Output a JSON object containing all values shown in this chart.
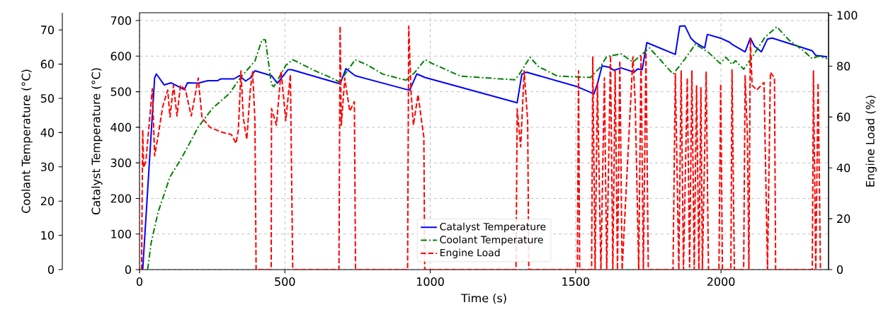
{
  "chart_data": {
    "type": "line",
    "xlabel": "Time (s)",
    "ylabel": "Catalyst Temperature (°C)",
    "y2label": "Engine Load (%)",
    "y3label": "Coolant Temperature (°C)",
    "xlim": [
      0,
      2370
    ],
    "xticks": [
      0,
      500,
      1000,
      1500,
      2000
    ],
    "ylim": [
      0,
      722
    ],
    "yticks": [
      0,
      100,
      200,
      300,
      400,
      500,
      600,
      700
    ],
    "y2lim": [
      0,
      101
    ],
    "y2ticks": [
      0,
      20,
      40,
      60,
      80,
      100
    ],
    "y3lim": [
      0,
      75
    ],
    "y3ticks": [
      0,
      10,
      20,
      30,
      40,
      50,
      60,
      70
    ],
    "grid": true,
    "legend": "bottom",
    "series": [
      {
        "name": "Catalyst Temperature",
        "color": "#0000ff",
        "axis": "y",
        "line_style": "solid",
        "x": [
          11,
          52,
          58,
          85,
          109,
          154,
          165,
          202,
          235,
          268,
          279,
          325,
          344,
          365,
          381,
          397,
          454,
          474,
          511,
          523,
          690,
          710,
          742,
          929,
          954,
          982,
          1299,
          1315,
          1331,
          1506,
          1563,
          1575,
          1591,
          1615,
          1632,
          1656,
          1701,
          1713,
          1729,
          1745,
          1843,
          1858,
          1876,
          1896,
          1912,
          1944,
          1953,
          1997,
          2030,
          2038,
          2083,
          2101,
          2115,
          2139,
          2160,
          2176,
          2314,
          2326,
          2365
        ],
        "values": [
          0,
          539,
          550,
          519,
          525,
          506,
          525,
          524,
          531,
          531,
          536,
          536,
          545,
          530,
          539,
          559,
          545,
          524,
          562,
          562,
          522,
          565,
          545,
          504,
          550,
          540,
          469,
          549,
          555,
          514,
          494,
          522,
          573,
          569,
          560,
          567,
          555,
          564,
          562,
          638,
          605,
          684,
          685,
          651,
          638,
          623,
          661,
          651,
          639,
          633,
          612,
          651,
          628,
          612,
          648,
          651,
          615,
          602,
          598
        ]
      },
      {
        "name": "Coolant Temperature",
        "color": "#008000",
        "axis": "y3",
        "line_style": "dashdot",
        "x": [
          28,
          40,
          64,
          105,
          145,
          202,
          251,
          308,
          348,
          397,
          421,
          433,
          454,
          462,
          503,
          527,
          551,
          600,
          657,
          690,
          710,
          742,
          787,
          836,
          917,
          946,
          982,
          1006,
          1104,
          1291,
          1307,
          1343,
          1372,
          1437,
          1551,
          1583,
          1607,
          1656,
          1697,
          1754,
          1795,
          1835,
          1859,
          1883,
          1912,
          1957,
          1997,
          2017,
          2038,
          2050,
          2078,
          2107,
          2151,
          2192,
          2233,
          2282,
          2314,
          2334,
          2365
        ],
        "values": [
          0,
          7.8,
          16.8,
          27.1,
          32.6,
          41.6,
          47.1,
          51.3,
          56.1,
          60.9,
          67.1,
          67.1,
          54.0,
          53.4,
          59.6,
          61.3,
          60.3,
          58.2,
          56.1,
          54.7,
          57.5,
          61.3,
          59.6,
          57.1,
          55.3,
          57.5,
          61.3,
          60.2,
          56.5,
          55.4,
          57.1,
          62.0,
          59.3,
          56.5,
          56.1,
          58.9,
          62.2,
          63.0,
          60.6,
          64.7,
          60.9,
          57.1,
          59.6,
          62.3,
          65.8,
          63.4,
          60.2,
          62.0,
          59.9,
          61.0,
          58.5,
          62.0,
          67.8,
          70.9,
          67.1,
          64.0,
          61.6,
          62.3,
          61.6
        ]
      },
      {
        "name": "Engine Load",
        "color": "#ff0000",
        "axis": "y2",
        "line_style": "dashed",
        "x": [
          7,
          11,
          14,
          22,
          44,
          52,
          64,
          80,
          97,
          105,
          117,
          129,
          141,
          158,
          178,
          202,
          215,
          243,
          284,
          316,
          332,
          340,
          349,
          357,
          369,
          381,
          389,
          397,
          401,
          453,
          454,
          471,
          487,
          503,
          519,
          527,
          686,
          690,
          694,
          706,
          723,
          739,
          743,
          922,
          926,
          934,
          942,
          958,
          970,
          978,
          981,
          1295,
          1299,
          1311,
          1323,
          1335,
          1339,
          1506,
          1510,
          1514,
          1555,
          1559,
          1567,
          1575,
          1587,
          1599,
          1607,
          1620,
          1628,
          1636,
          1644,
          1652,
          1660,
          1697,
          1705,
          1717,
          1725,
          1733,
          1742,
          1750,
          1835,
          1843,
          1855,
          1863,
          1871,
          1884,
          1892,
          1900,
          1908,
          1916,
          1924,
          1931,
          1936,
          1949,
          1957,
          1993,
          1999,
          2005,
          2034,
          2038,
          2046,
          2078,
          2083,
          2091,
          2096,
          2101,
          2107,
          2123,
          2148,
          2160,
          2170,
          2184,
          2188,
          2314,
          2318,
          2326,
          2334,
          2338,
          2342
        ],
        "values": [
          0,
          54.9,
          40.1,
          42.6,
          71.1,
          44.7,
          52.6,
          64.2,
          70.6,
          60.0,
          72.5,
          60.4,
          72.5,
          70.6,
          60.4,
          75.3,
          59.6,
          55.9,
          54.0,
          53.1,
          49.6,
          54.9,
          78.1,
          59.6,
          51.2,
          70.6,
          78.1,
          58.6,
          0,
          0,
          63.3,
          56.8,
          78.1,
          58.6,
          76.7,
          0,
          0,
          95.7,
          56.8,
          75.3,
          62.3,
          66.0,
          0,
          0,
          95.7,
          69.8,
          56.8,
          68.8,
          58.6,
          52.1,
          0,
          0,
          63.2,
          48.3,
          78.1,
          58.6,
          0,
          0,
          78.1,
          0,
          0,
          83.6,
          0,
          73.4,
          0,
          75.3,
          0,
          84.1,
          0,
          78.1,
          0,
          82.2,
          0,
          83.6,
          65.8,
          0,
          84.5,
          0,
          85.5,
          0,
          0,
          77.1,
          0,
          78.1,
          0,
          75.3,
          1,
          78.1,
          0,
          72.5,
          0,
          71.5,
          0,
          77.6,
          0,
          0,
          73.0,
          0,
          0,
          78.5,
          0,
          0,
          76.2,
          52.3,
          0,
          91.0,
          72.5,
          70.6,
          73.6,
          0,
          77.6,
          75.3,
          0,
          0,
          78.1,
          0,
          73.4,
          38,
          0
        ]
      }
    ]
  }
}
